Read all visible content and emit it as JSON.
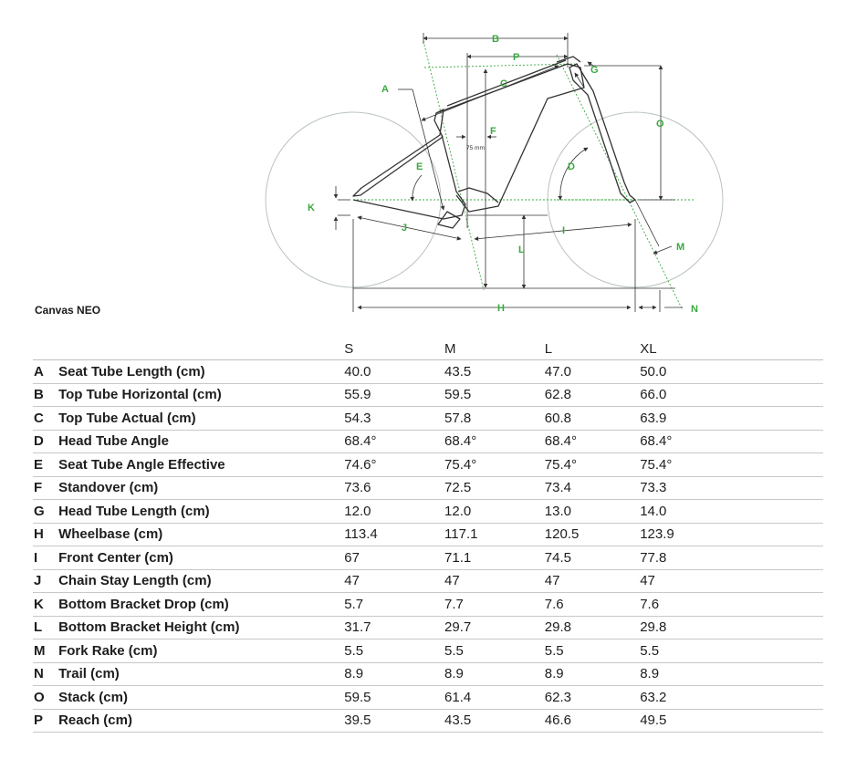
{
  "diagram": {
    "letters": [
      "A",
      "B",
      "C",
      "D",
      "E",
      "F",
      "G",
      "H",
      "I",
      "J",
      "K",
      "L",
      "M",
      "N",
      "O",
      "P"
    ],
    "annotation": "75 mm",
    "colors": {
      "accent": "#3aa83f",
      "line": "#444444",
      "wheel": "#b9c4bb"
    }
  },
  "model_name": "Canvas NEO",
  "table": {
    "sizes": [
      "S",
      "M",
      "L",
      "XL"
    ],
    "rows": [
      {
        "letter": "A",
        "label": "Seat Tube Length (cm)",
        "values": [
          "40.0",
          "43.5",
          "47.0",
          "50.0"
        ]
      },
      {
        "letter": "B",
        "label": "Top Tube Horizontal (cm)",
        "values": [
          "55.9",
          "59.5",
          "62.8",
          "66.0"
        ]
      },
      {
        "letter": "C",
        "label": "Top Tube Actual (cm)",
        "values": [
          "54.3",
          "57.8",
          "60.8",
          "63.9"
        ]
      },
      {
        "letter": "D",
        "label": "Head Tube Angle",
        "values": [
          "68.4°",
          "68.4°",
          "68.4°",
          "68.4°"
        ]
      },
      {
        "letter": "E",
        "label": "Seat Tube Angle Effective",
        "values": [
          "74.6°",
          "75.4°",
          "75.4°",
          "75.4°"
        ]
      },
      {
        "letter": "F",
        "label": "Standover (cm)",
        "values": [
          "73.6",
          "72.5",
          "73.4",
          "73.3"
        ]
      },
      {
        "letter": "G",
        "label": "Head Tube Length (cm)",
        "values": [
          "12.0",
          "12.0",
          "13.0",
          "14.0"
        ]
      },
      {
        "letter": "H",
        "label": "Wheelbase (cm)",
        "values": [
          "113.4",
          "117.1",
          "120.5",
          "123.9"
        ]
      },
      {
        "letter": "I",
        "label": "Front Center (cm)",
        "values": [
          "67",
          "71.1",
          "74.5",
          "77.8"
        ]
      },
      {
        "letter": "J",
        "label": "Chain Stay Length (cm)",
        "values": [
          "47",
          "47",
          "47",
          "47"
        ]
      },
      {
        "letter": "K",
        "label": "Bottom Bracket Drop (cm)",
        "values": [
          "5.7",
          "7.7",
          "7.6",
          "7.6"
        ]
      },
      {
        "letter": "L",
        "label": "Bottom Bracket Height (cm)",
        "values": [
          "31.7",
          "29.7",
          "29.8",
          "29.8"
        ]
      },
      {
        "letter": "M",
        "label": "Fork Rake (cm)",
        "values": [
          "5.5",
          "5.5",
          "5.5",
          "5.5"
        ]
      },
      {
        "letter": "N",
        "label": "Trail (cm)",
        "values": [
          "8.9",
          "8.9",
          "8.9",
          "8.9"
        ]
      },
      {
        "letter": "O",
        "label": "Stack (cm)",
        "values": [
          "59.5",
          "61.4",
          "62.3",
          "63.2"
        ]
      },
      {
        "letter": "P",
        "label": "Reach (cm)",
        "values": [
          "39.5",
          "43.5",
          "46.6",
          "49.5"
        ]
      }
    ]
  }
}
